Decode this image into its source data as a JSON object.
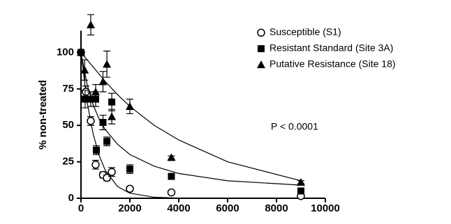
{
  "chart_data": {
    "type": "scatter",
    "y_label": "% non-treated",
    "annotation": "P < 0.0001",
    "xlim": [
      0,
      10000
    ],
    "xticks": [
      0,
      2000,
      4000,
      6000,
      8000,
      10000
    ],
    "ylim": [
      0,
      115
    ],
    "yticks": [
      0,
      25,
      50,
      75,
      100
    ],
    "color": "#000000",
    "series": [
      {
        "name": "Susceptible (S1)",
        "marker": "circle",
        "x": [
          0,
          200,
          400,
          600,
          900,
          1060,
          1260,
          2000,
          3700,
          9000
        ],
        "values": [
          100,
          73,
          53,
          23,
          16,
          14,
          18,
          6.5,
          4,
          1.5
        ],
        "errors": [
          2,
          4,
          3,
          3,
          2,
          2,
          3,
          1.5,
          1,
          1
        ],
        "fit": {
          "x": [
            0,
            250,
            500,
            750,
            1000,
            1500,
            2000,
            3000,
            4000,
            6000,
            9000
          ],
          "y": [
            100,
            66,
            44,
            29,
            19,
            8,
            3.5,
            0.7,
            0.1,
            0,
            0
          ]
        }
      },
      {
        "name": "Resistant Standard (Site 3A)",
        "marker": "square",
        "x": [
          0,
          170,
          400,
          600,
          630,
          900,
          1060,
          1260,
          2000,
          3700,
          9000
        ],
        "values": [
          100,
          68,
          68,
          68,
          33,
          52,
          39,
          66,
          20,
          15,
          5
        ],
        "errors": [
          2,
          6,
          5,
          5,
          3,
          5,
          3,
          6,
          3,
          1,
          2
        ],
        "fit": {
          "x": [
            0,
            250,
            500,
            750,
            1000,
            1500,
            2000,
            3000,
            4000,
            6000,
            9000
          ],
          "y": [
            100,
            78,
            64,
            54,
            47,
            37,
            30,
            22,
            17,
            12,
            9
          ]
        }
      },
      {
        "name": "Putative Resistance (Site 18)",
        "marker": "triangle",
        "x": [
          0,
          150,
          400,
          600,
          900,
          1060,
          1260,
          2000,
          3700,
          9000
        ],
        "values": [
          100,
          88,
          119,
          73,
          80,
          92,
          56,
          63,
          28,
          11
        ],
        "errors": [
          2,
          7,
          7,
          5,
          7,
          9,
          5,
          5,
          1,
          1
        ],
        "fit": {
          "x": [
            0,
            250,
            500,
            750,
            1000,
            1500,
            2000,
            3000,
            4000,
            6000,
            9000
          ],
          "y": [
            100,
            95,
            90,
            85,
            80,
            71,
            63,
            50,
            40,
            25,
            12
          ]
        }
      }
    ]
  }
}
